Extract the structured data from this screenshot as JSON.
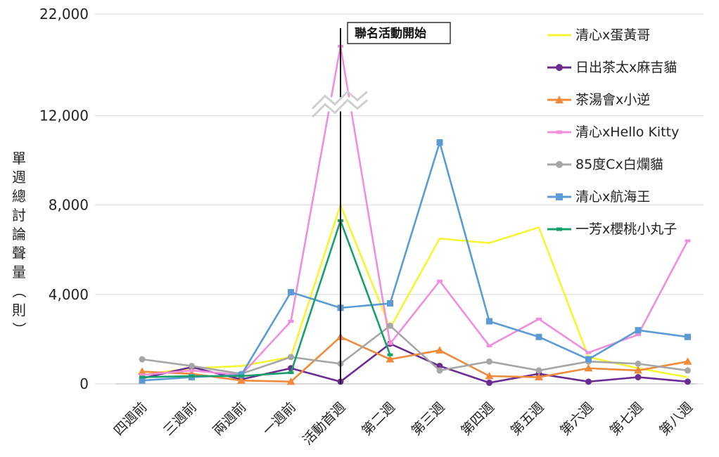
{
  "chart_data": {
    "type": "line",
    "ylabel": "單週總討論聲量（則）",
    "ylim": [
      0,
      22000
    ],
    "ytick_values": [
      0,
      4000,
      8000,
      12000,
      22000
    ],
    "ytick_labels": [
      "0",
      "4,000",
      "8,000",
      "12,000",
      "22,000"
    ],
    "axis_break": {
      "from": 12000,
      "to": 21000
    },
    "categories": [
      "四週前",
      "三週前",
      "兩週前",
      "一週前",
      "活動首週",
      "第二週",
      "第三週",
      "第四週",
      "第五週",
      "第六週",
      "第七週",
      "第八週"
    ],
    "annotation": {
      "label": "聯名活動開始",
      "category_index": 4
    },
    "legend_position": "top-right",
    "grid": true,
    "series": [
      {
        "name": "清心x蛋黃哥",
        "color": "#f5f532",
        "marker": "none",
        "values": [
          400,
          700,
          800,
          1200,
          8000,
          2500,
          6500,
          6300,
          7000,
          1200,
          700,
          300
        ]
      },
      {
        "name": "日出茶太x麻吉貓",
        "color": "#6b2c91",
        "marker": "circle",
        "values": [
          250,
          750,
          200,
          700,
          100,
          1800,
          800,
          50,
          450,
          100,
          300,
          100
        ]
      },
      {
        "name": "茶湯會x小逆",
        "color": "#ef8a3a",
        "marker": "triangle",
        "values": [
          550,
          450,
          150,
          100,
          2100,
          1100,
          1500,
          350,
          300,
          700,
          600,
          1000
        ]
      },
      {
        "name": "清心xHello Kitty",
        "color": "#ef8fdc",
        "marker": "dash",
        "values": [
          400,
          600,
          400,
          2800,
          21600,
          1800,
          4600,
          1700,
          2900,
          1400,
          2200,
          6400
        ]
      },
      {
        "name": "85度Cx白爛貓",
        "color": "#a6a6a6",
        "marker": "circle",
        "values": [
          1100,
          800,
          450,
          1200,
          900,
          2600,
          600,
          1000,
          600,
          1000,
          900,
          600
        ]
      },
      {
        "name": "清心x航海王",
        "color": "#5b9bd5",
        "marker": "square",
        "values": [
          150,
          300,
          400,
          4100,
          3400,
          3600,
          10800,
          2800,
          2100,
          1100,
          2400,
          2100
        ]
      },
      {
        "name": "一芳x櫻桃小丸子",
        "color": "#17a06a",
        "marker": "dash",
        "values": [
          300,
          350,
          350,
          500,
          7300,
          1300,
          null,
          null,
          null,
          null,
          null,
          null
        ]
      }
    ]
  }
}
